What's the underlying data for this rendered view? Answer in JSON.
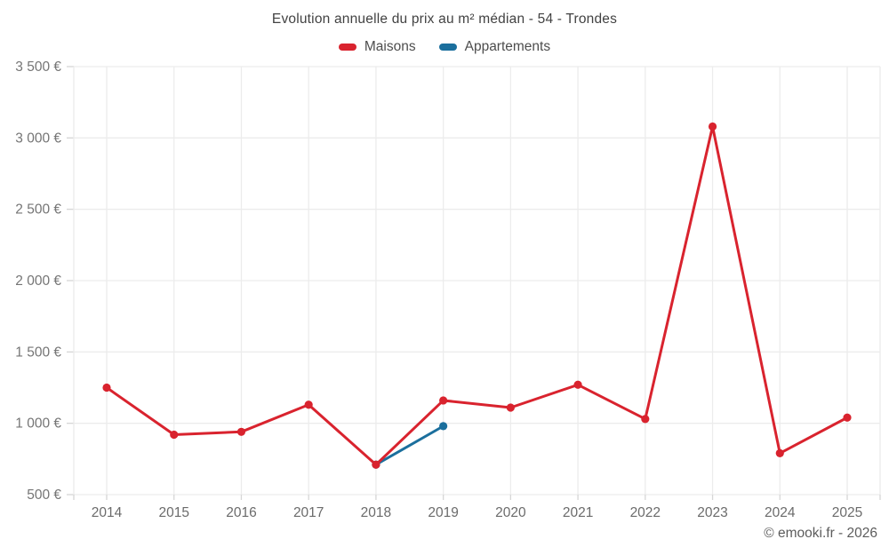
{
  "title": "Evolution annuelle du prix au m² médian - 54 - Trondes",
  "attribution": "© emooki.fr - 2026",
  "legend": [
    {
      "label": "Maisons",
      "color": "#d9232e"
    },
    {
      "label": "Appartements",
      "color": "#1b6f9d"
    }
  ],
  "colors": {
    "grid": "#ececec",
    "tick": "#d6d6d6",
    "y_label": "#757575",
    "x_label": "#6b6b6b"
  },
  "chart_data": {
    "type": "line",
    "title": "Evolution annuelle du prix au m² médian - 54 - Trondes",
    "categories": [
      "2014",
      "2015",
      "2016",
      "2017",
      "2018",
      "2019",
      "2020",
      "2021",
      "2022",
      "2023",
      "2024",
      "2025"
    ],
    "series": [
      {
        "name": "Maisons",
        "color": "#d9232e",
        "values": [
          1250,
          920,
          940,
          1130,
          710,
          1160,
          1110,
          1270,
          1030,
          3080,
          790,
          1040
        ]
      },
      {
        "name": "Appartements",
        "color": "#1b6f9d",
        "values": [
          null,
          null,
          null,
          null,
          710,
          980,
          null,
          null,
          null,
          null,
          null,
          null
        ]
      }
    ],
    "xlabel": "",
    "ylabel": "",
    "ylim": [
      500,
      3500
    ],
    "grid": true,
    "legend_position": "top",
    "currency": "€",
    "y_ticks": [
      {
        "v": 500,
        "label": "500 €"
      },
      {
        "v": 1000,
        "label": "1 000 €"
      },
      {
        "v": 1500,
        "label": "1 500 €"
      },
      {
        "v": 2000,
        "label": "2 000 €"
      },
      {
        "v": 2500,
        "label": "2 500 €"
      },
      {
        "v": 3000,
        "label": "3 000 €"
      },
      {
        "v": 3500,
        "label": "3 500 €"
      }
    ]
  }
}
